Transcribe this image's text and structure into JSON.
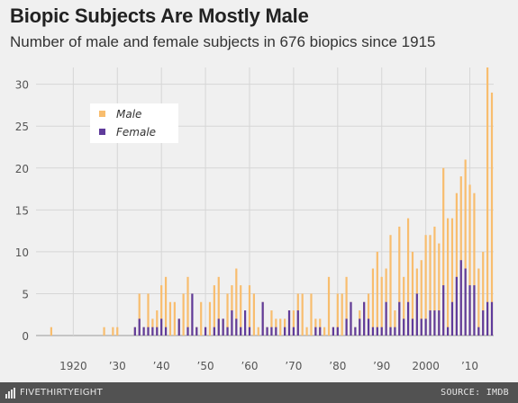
{
  "header": {
    "title": "Biopic Subjects Are Mostly Male",
    "subtitle": "Number of male and female subjects in 676 biopics since 1915"
  },
  "footer": {
    "brand": "FIVETHIRTYEIGHT",
    "source": "SOURCE: IMDB"
  },
  "colors": {
    "male": "#f8bd6e",
    "female": "#5f3b9b",
    "grid": "#d6d6d6",
    "background": "#f0f0f0",
    "footer_bg": "#525252"
  },
  "chart_data": {
    "type": "bar",
    "title": "Biopic Subjects Are Mostly Male",
    "subtitle": "Number of male and female subjects in 676 biopics since 1915",
    "x_tick_labels": [
      {
        "year": 1920,
        "label": "1920"
      },
      {
        "year": 1930,
        "label": "’30"
      },
      {
        "year": 1940,
        "label": "’40"
      },
      {
        "year": 1950,
        "label": "’50"
      },
      {
        "year": 1960,
        "label": "’60"
      },
      {
        "year": 1970,
        "label": "’70"
      },
      {
        "year": 1980,
        "label": "’80"
      },
      {
        "year": 1990,
        "label": "’90"
      },
      {
        "year": 2000,
        "label": "2000"
      },
      {
        "year": 2010,
        "label": "’10"
      }
    ],
    "y_ticks": [
      0,
      5,
      10,
      15,
      20,
      25,
      30
    ],
    "ylim": [
      0,
      32
    ],
    "xlim": [
      1914,
      2015
    ],
    "grid": true,
    "legend_position": "upper-left",
    "series": [
      {
        "name": "Male",
        "color": "#f8bd6e",
        "points": [
          [
            1915,
            1
          ],
          [
            1927,
            1
          ],
          [
            1929,
            1
          ],
          [
            1930,
            1
          ],
          [
            1934,
            1
          ],
          [
            1935,
            5
          ],
          [
            1936,
            1
          ],
          [
            1937,
            5
          ],
          [
            1938,
            2
          ],
          [
            1939,
            3
          ],
          [
            1940,
            6
          ],
          [
            1941,
            7
          ],
          [
            1942,
            4
          ],
          [
            1943,
            4
          ],
          [
            1944,
            2
          ],
          [
            1945,
            5
          ],
          [
            1946,
            7
          ],
          [
            1947,
            5
          ],
          [
            1948,
            1
          ],
          [
            1949,
            4
          ],
          [
            1950,
            1
          ],
          [
            1951,
            4
          ],
          [
            1952,
            6
          ],
          [
            1953,
            7
          ],
          [
            1954,
            2
          ],
          [
            1955,
            5
          ],
          [
            1956,
            6
          ],
          [
            1957,
            8
          ],
          [
            1958,
            6
          ],
          [
            1959,
            1
          ],
          [
            1960,
            6
          ],
          [
            1961,
            5
          ],
          [
            1962,
            1
          ],
          [
            1963,
            4
          ],
          [
            1964,
            1
          ],
          [
            1965,
            3
          ],
          [
            1966,
            2
          ],
          [
            1967,
            2
          ],
          [
            1968,
            2
          ],
          [
            1969,
            3
          ],
          [
            1970,
            3
          ],
          [
            1971,
            5
          ],
          [
            1972,
            5
          ],
          [
            1973,
            1
          ],
          [
            1974,
            5
          ],
          [
            1975,
            2
          ],
          [
            1976,
            2
          ],
          [
            1977,
            1
          ],
          [
            1978,
            7
          ],
          [
            1979,
            1
          ],
          [
            1980,
            5
          ],
          [
            1981,
            5
          ],
          [
            1982,
            7
          ],
          [
            1983,
            4
          ],
          [
            1984,
            1
          ],
          [
            1985,
            3
          ],
          [
            1986,
            4
          ],
          [
            1987,
            5
          ],
          [
            1988,
            8
          ],
          [
            1989,
            10
          ],
          [
            1990,
            7
          ],
          [
            1991,
            8
          ],
          [
            1992,
            12
          ],
          [
            1993,
            3
          ],
          [
            1994,
            13
          ],
          [
            1995,
            7
          ],
          [
            1996,
            14
          ],
          [
            1997,
            10
          ],
          [
            1998,
            8
          ],
          [
            1999,
            9
          ],
          [
            2000,
            12
          ],
          [
            2001,
            12
          ],
          [
            2002,
            13
          ],
          [
            2003,
            11
          ],
          [
            2004,
            20
          ],
          [
            2005,
            14
          ],
          [
            2006,
            14
          ],
          [
            2007,
            17
          ],
          [
            2008,
            19
          ],
          [
            2009,
            21
          ],
          [
            2010,
            18
          ],
          [
            2011,
            17
          ],
          [
            2012,
            8
          ],
          [
            2013,
            10
          ],
          [
            2014,
            32
          ],
          [
            2015,
            29
          ]
        ]
      },
      {
        "name": "Female",
        "color": "#5f3b9b",
        "points": [
          [
            1934,
            1
          ],
          [
            1935,
            2
          ],
          [
            1936,
            1
          ],
          [
            1937,
            1
          ],
          [
            1938,
            1
          ],
          [
            1939,
            1
          ],
          [
            1940,
            2
          ],
          [
            1941,
            1
          ],
          [
            1944,
            2
          ],
          [
            1946,
            1
          ],
          [
            1947,
            5
          ],
          [
            1948,
            1
          ],
          [
            1950,
            1
          ],
          [
            1952,
            1
          ],
          [
            1953,
            2
          ],
          [
            1954,
            2
          ],
          [
            1955,
            1
          ],
          [
            1956,
            3
          ],
          [
            1957,
            2
          ],
          [
            1958,
            1
          ],
          [
            1959,
            3
          ],
          [
            1960,
            1
          ],
          [
            1963,
            4
          ],
          [
            1964,
            1
          ],
          [
            1965,
            1
          ],
          [
            1966,
            1
          ],
          [
            1968,
            1
          ],
          [
            1969,
            3
          ],
          [
            1970,
            1
          ],
          [
            1971,
            3
          ],
          [
            1975,
            1
          ],
          [
            1976,
            1
          ],
          [
            1979,
            1
          ],
          [
            1980,
            1
          ],
          [
            1982,
            2
          ],
          [
            1983,
            4
          ],
          [
            1984,
            1
          ],
          [
            1985,
            2
          ],
          [
            1986,
            4
          ],
          [
            1987,
            2
          ],
          [
            1988,
            1
          ],
          [
            1989,
            1
          ],
          [
            1990,
            1
          ],
          [
            1991,
            4
          ],
          [
            1992,
            1
          ],
          [
            1993,
            1
          ],
          [
            1994,
            4
          ],
          [
            1995,
            2
          ],
          [
            1996,
            4
          ],
          [
            1997,
            2
          ],
          [
            1998,
            5
          ],
          [
            1999,
            2
          ],
          [
            2000,
            2
          ],
          [
            2001,
            3
          ],
          [
            2002,
            3
          ],
          [
            2003,
            3
          ],
          [
            2004,
            6
          ],
          [
            2005,
            1
          ],
          [
            2006,
            4
          ],
          [
            2007,
            7
          ],
          [
            2008,
            9
          ],
          [
            2009,
            8
          ],
          [
            2010,
            6
          ],
          [
            2011,
            6
          ],
          [
            2012,
            1
          ],
          [
            2013,
            3
          ],
          [
            2014,
            4
          ],
          [
            2015,
            4
          ]
        ]
      }
    ]
  }
}
